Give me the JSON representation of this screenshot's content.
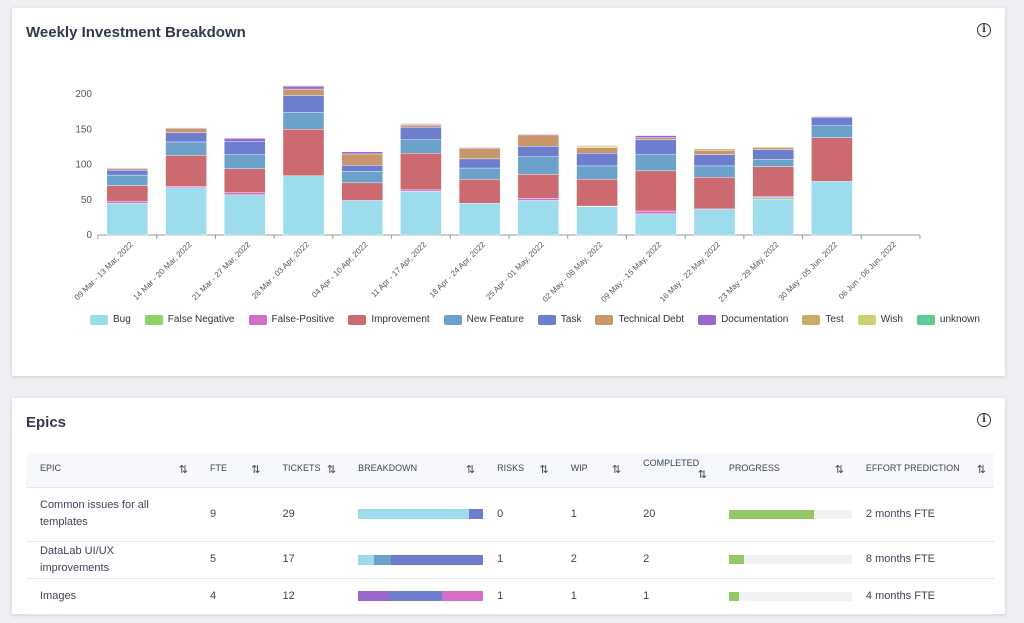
{
  "chart_panel": {
    "title": "Weekly Investment Breakdown"
  },
  "chart_data": {
    "type": "bar",
    "stacked": true,
    "title": "Weekly Investment Breakdown",
    "xlabel": "",
    "ylabel": "",
    "ylim": [
      0,
      215
    ],
    "yticks": [
      0,
      50,
      100,
      150,
      200
    ],
    "grid": false,
    "legend": "bottom",
    "categories": [
      "09 Mar - 13 Mar, 2022",
      "14 Mar - 20 Mar, 2022",
      "21 Mar - 27 Mar, 2022",
      "28 Mar - 03 Apr, 2022",
      "04 Apr - 10 Apr, 2022",
      "11 Apr - 17 Apr, 2022",
      "18 Apr - 24 Apr, 2022",
      "25 Apr - 01 May, 2022",
      "02 May - 08 May, 2022",
      "09 May - 15 May, 2022",
      "16 May - 22 May, 2022",
      "23 May - 29 May, 2022",
      "30 May - 05 Jun, 2022",
      "06 Jun - 06 Jun, 2022"
    ],
    "series": [
      {
        "name": "Bug",
        "color": "#9ddcec",
        "values": [
          45,
          67,
          57,
          84,
          49,
          62,
          45,
          49,
          40,
          30,
          37,
          51,
          76,
          0
        ]
      },
      {
        "name": "False Negative",
        "color": "#8fd26a",
        "values": [
          0,
          0,
          0,
          0,
          0,
          0,
          0,
          0,
          1,
          0,
          0,
          2,
          0,
          0
        ]
      },
      {
        "name": "False-Positive",
        "color": "#d56ec9",
        "values": [
          3,
          2,
          3,
          0,
          0,
          2,
          0,
          3,
          0,
          4,
          0,
          2,
          0,
          0
        ]
      },
      {
        "name": "Improvement",
        "color": "#cb6b71",
        "values": [
          22,
          44,
          34,
          66,
          25,
          52,
          34,
          34,
          38,
          57,
          45,
          42,
          62,
          0
        ]
      },
      {
        "name": "New Feature",
        "color": "#6aa2cb",
        "values": [
          15,
          19,
          20,
          24,
          16,
          19,
          16,
          25,
          19,
          23,
          16,
          10,
          17,
          0
        ]
      },
      {
        "name": "Task",
        "color": "#6c7ecd",
        "values": [
          7,
          13,
          19,
          24,
          9,
          18,
          13,
          15,
          18,
          21,
          16,
          14,
          12,
          0
        ]
      },
      {
        "name": "Technical Debt",
        "color": "#c99669",
        "values": [
          2,
          6,
          0,
          9,
          16,
          3,
          15,
          16,
          8,
          3,
          6,
          3,
          0,
          0
        ]
      },
      {
        "name": "Documentation",
        "color": "#9966cc",
        "values": [
          1,
          1,
          4,
          4,
          3,
          1,
          1,
          1,
          0,
          3,
          0,
          0,
          1,
          0
        ]
      },
      {
        "name": "Test",
        "color": "#c8ab66",
        "values": [
          0,
          0,
          0,
          1,
          0,
          1,
          0,
          0,
          1,
          0,
          2,
          1,
          0,
          0
        ]
      },
      {
        "name": "Wish",
        "color": "#cdd06b",
        "values": [
          0,
          0,
          0,
          0,
          0,
          0,
          0,
          0,
          2,
          0,
          0,
          0,
          0,
          0
        ]
      },
      {
        "name": "unknown",
        "color": "#5ccb94",
        "values": [
          0,
          0,
          0,
          0,
          0,
          0,
          0,
          0,
          0,
          0,
          0,
          0,
          0,
          0
        ]
      }
    ]
  },
  "epics": {
    "title": "Epics",
    "columns": [
      "EPIC",
      "FTE",
      "TICKETS",
      "BREAKDOWN",
      "RISKS",
      "WIP",
      "COMPLETED",
      "PROGRESS",
      "EFFORT PREDICTION"
    ],
    "sort_icon": "⇅",
    "rows": [
      {
        "epic": "Common issues for all templates",
        "fte": "9",
        "tickets": "29",
        "breakdown": [
          {
            "type": "Bug",
            "pct": 89
          },
          {
            "type": "Task",
            "pct": 11
          }
        ],
        "risks": "0",
        "wip": "1",
        "completed": "20",
        "progress": 69,
        "effort": "2 months FTE"
      },
      {
        "epic": "DataLab UI/UX improvements",
        "fte": "5",
        "tickets": "17",
        "breakdown": [
          {
            "type": "Bug",
            "pct": 13
          },
          {
            "type": "New Feature",
            "pct": 13
          },
          {
            "type": "Task",
            "pct": 74
          }
        ],
        "risks": "1",
        "wip": "2",
        "completed": "2",
        "progress": 12,
        "effort": "8 months FTE"
      },
      {
        "epic": "Images",
        "fte": "4",
        "tickets": "12",
        "breakdown": [
          {
            "type": "Documentation",
            "pct": 25
          },
          {
            "type": "Task",
            "pct": 42
          },
          {
            "type": "False-Positive",
            "pct": 33
          }
        ],
        "risks": "1",
        "wip": "1",
        "completed": "1",
        "progress": 8,
        "effort": "4 months FTE"
      }
    ]
  }
}
